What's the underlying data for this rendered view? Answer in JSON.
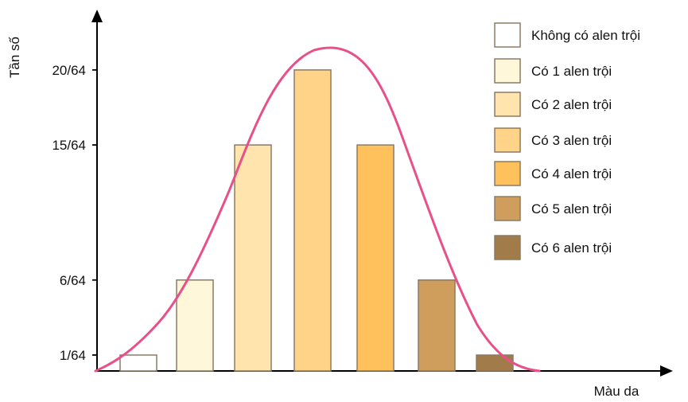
{
  "chart_data": {
    "type": "bar",
    "title": "",
    "xlabel": "Màu da",
    "ylabel": "Tần số",
    "categories": [
      "Không có alen trội",
      "Có 1 alen trội",
      "Có 2 alen trội",
      "Có 3 alen trội",
      "Có 4 alen trội",
      "Có 5 alen trội",
      "Có 6 alen trội"
    ],
    "values": [
      1,
      6,
      15,
      20,
      15,
      6,
      1
    ],
    "colors": [
      "#ffffff",
      "#fff7da",
      "#ffe4ad",
      "#ffd488",
      "#ffc15c",
      "#cf9e5d",
      "#a27b4b"
    ],
    "yticks": [
      {
        "value": 1,
        "label": "1/64"
      },
      {
        "value": 6,
        "label": "6/64"
      },
      {
        "value": 15,
        "label": "15/64"
      },
      {
        "value": 20,
        "label": "20/64"
      }
    ],
    "ylim": [
      0,
      22
    ],
    "grid": false,
    "legend_position": "top-right",
    "curve_color": "#e8508a",
    "bar_stroke": "#8b7b63"
  }
}
